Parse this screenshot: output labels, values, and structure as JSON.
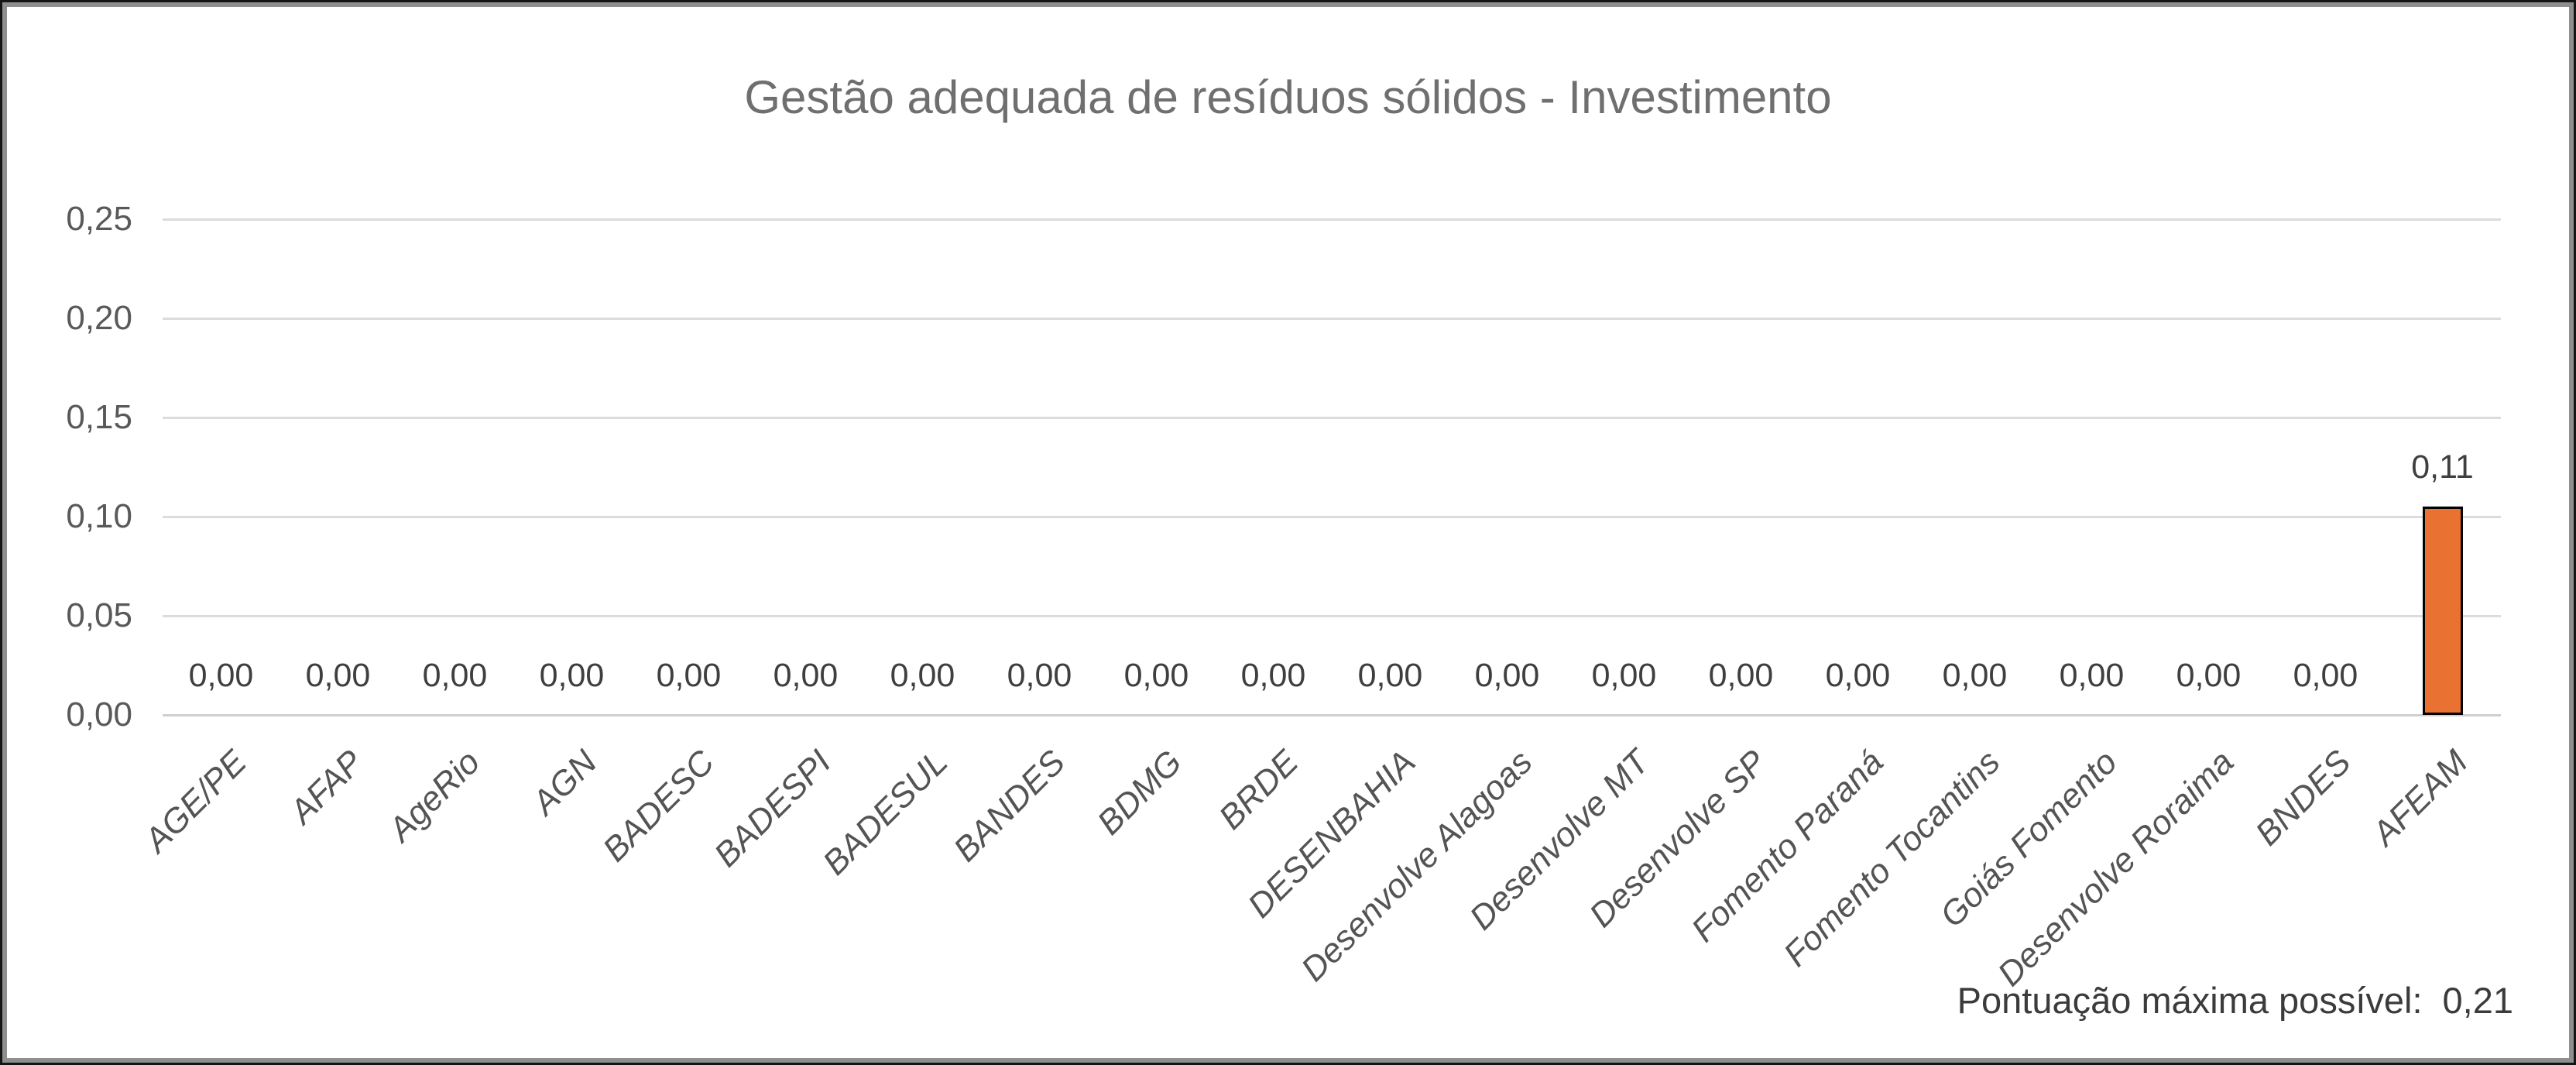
{
  "title": "Gestão adequada de resíduos sólidos - Investimento",
  "footer": {
    "label": "Pontuação máxima possível:",
    "value": "0,21"
  },
  "chart_data": {
    "type": "bar",
    "title": "Gestão adequada de resíduos sólidos - Investimento",
    "categories": [
      "AGE/PE",
      "AFAP",
      "AgeRio",
      "AGN",
      "BADESC",
      "BADESPI",
      "BADESUL",
      "BANDES",
      "BDMG",
      "BRDE",
      "DESENBAHIA",
      "Desenvolve Alagoas",
      "Desenvolve MT",
      "Desenvolve SP",
      "Fomento Paraná",
      "Fomento Tocantins",
      "Goiás Fomento",
      "Desenvolve Roraima",
      "BNDES",
      "AFEAM"
    ],
    "values": [
      0,
      0,
      0,
      0,
      0,
      0,
      0,
      0,
      0,
      0,
      0,
      0,
      0,
      0,
      0,
      0,
      0,
      0,
      0,
      0.105
    ],
    "value_labels": [
      "0,00",
      "0,00",
      "0,00",
      "0,00",
      "0,00",
      "0,00",
      "0,00",
      "0,00",
      "0,00",
      "0,00",
      "0,00",
      "0,00",
      "0,00",
      "0,00",
      "0,00",
      "0,00",
      "0,00",
      "0,00",
      "0,00",
      "0,11"
    ],
    "xlabel": "",
    "ylabel": "",
    "ylim": [
      0,
      0.25
    ],
    "ytick_labels": [
      "0,00",
      "0,05",
      "0,10",
      "0,15",
      "0,20",
      "0,25"
    ],
    "ytick_values": [
      0,
      0.05,
      0.1,
      0.15,
      0.2,
      0.25
    ],
    "grid": true,
    "legend": false,
    "bar_color": "#e97132",
    "bar_border_color": "#000000",
    "annotation": "Pontuação máxima possível:  0,21"
  }
}
